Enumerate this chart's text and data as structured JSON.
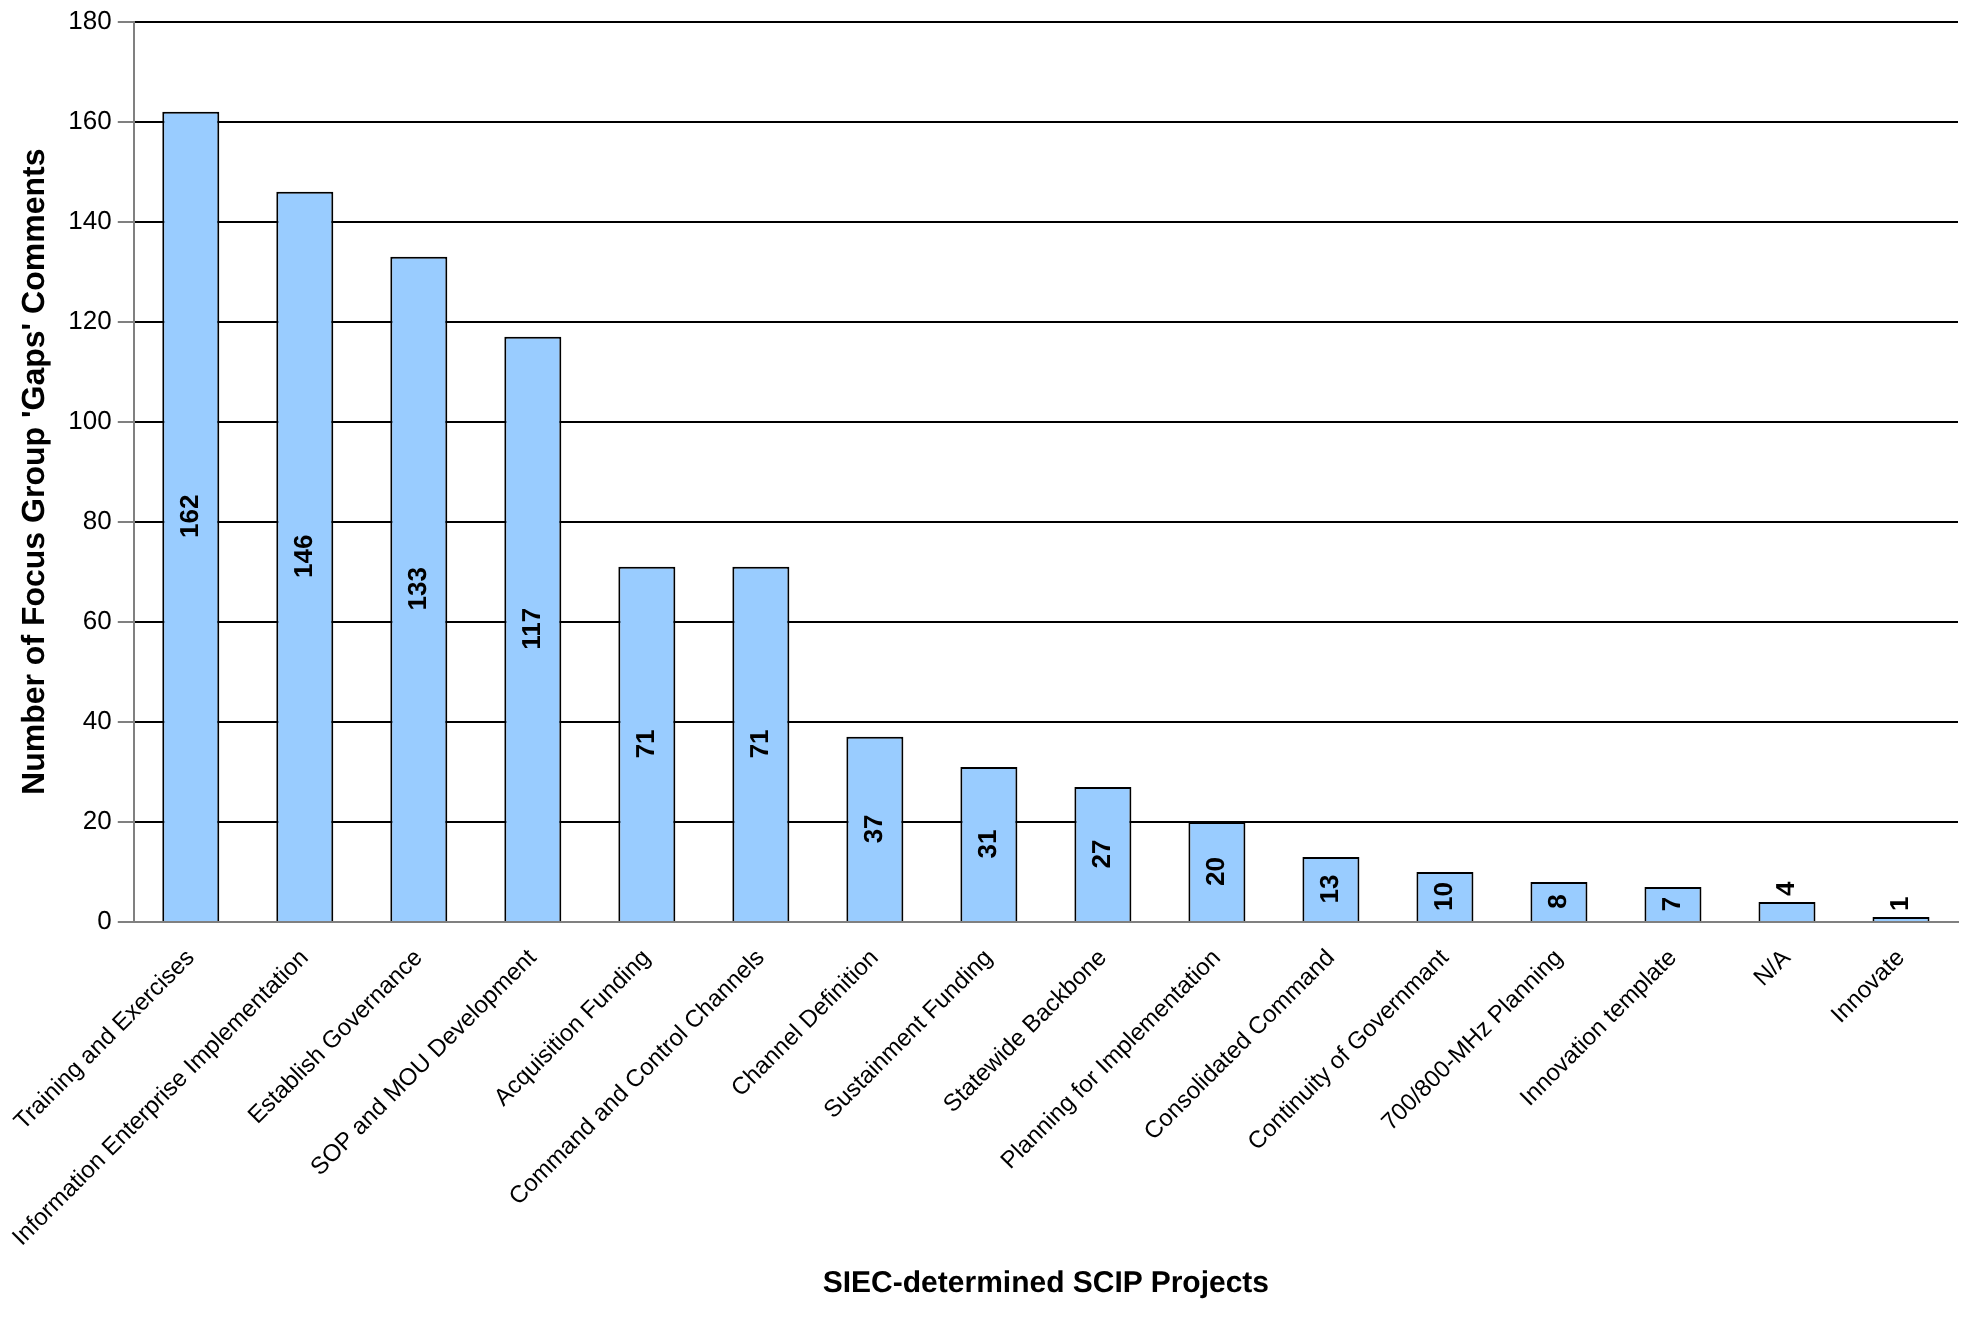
{
  "chart_data": {
    "type": "bar",
    "xlabel": "SIEC-determined SCIP Projects",
    "ylabel": "Number of Focus Group 'Gaps' Comments",
    "categories": [
      "Training and Exercises",
      "Information Enterprise Implementation",
      "Establish Governance",
      "SOP and MOU Development",
      "Acquisition Funding",
      "Command and Control Channels",
      "Channel Definition",
      "Sustainment Funding",
      "Statewide Backbone",
      "Planning for Implementation",
      "Consolidated Command",
      "Continuity of Governmant",
      "700/800-MHz Planning",
      "Innovation template",
      "N/A",
      "Innovate"
    ],
    "values": [
      162,
      146,
      133,
      117,
      71,
      71,
      37,
      31,
      27,
      20,
      13,
      10,
      8,
      7,
      4,
      1
    ],
    "color": "#99ccff",
    "ylim": [
      0,
      180
    ],
    "yticks": [
      0,
      20,
      40,
      60,
      80,
      100,
      120,
      140,
      160,
      180
    ],
    "grid": "y",
    "data_labels": true,
    "legend": false
  }
}
